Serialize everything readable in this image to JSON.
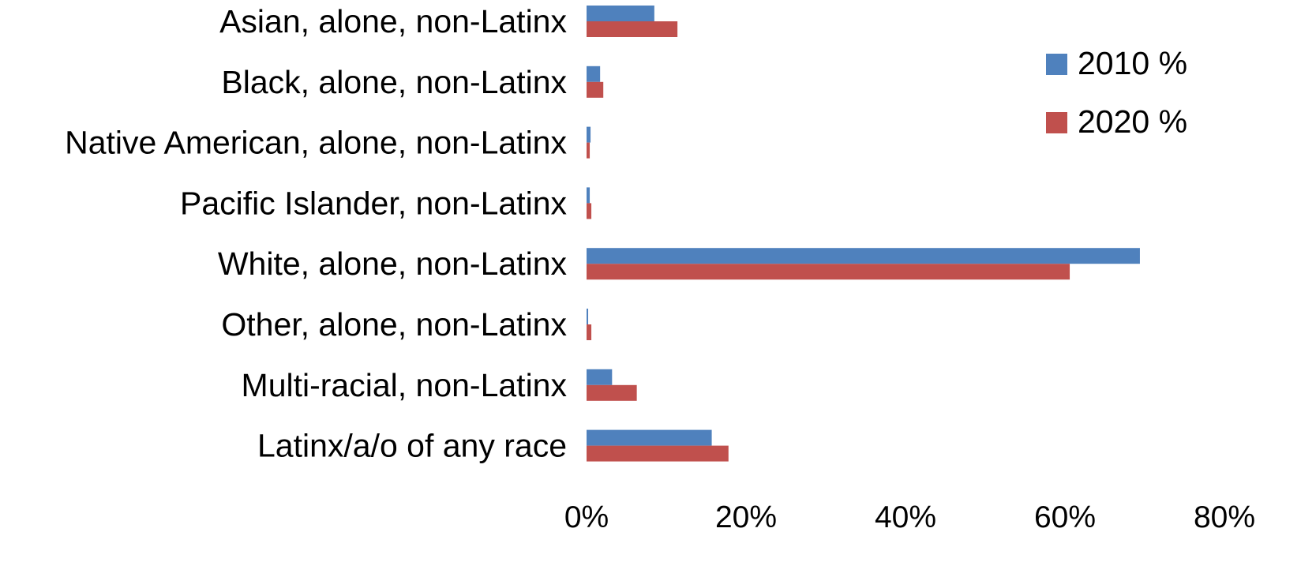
{
  "chart_data": {
    "type": "bar",
    "orientation": "horizontal",
    "categories": [
      "Asian, alone, non-Latinx",
      "Black, alone, non-Latinx",
      "Native American, alone, non-Latinx",
      "Pacific Islander, non-Latinx",
      "White, alone, non-Latinx",
      "Other, alone, non-Latinx",
      "Multi-racial, non-Latinx",
      "Latinx/a/o of any race"
    ],
    "series": [
      {
        "name": "2010 %",
        "color": "#4f81bd",
        "values": [
          8.5,
          1.7,
          0.5,
          0.4,
          69.4,
          0.2,
          3.2,
          15.7
        ]
      },
      {
        "name": "2020 %",
        "color": "#c0504d",
        "values": [
          11.4,
          2.1,
          0.4,
          0.6,
          60.6,
          0.6,
          6.3,
          17.8
        ]
      }
    ],
    "xlim": [
      0,
      80
    ],
    "xticks": [
      "0%",
      "20%",
      "40%",
      "60%",
      "80%"
    ],
    "title": "",
    "xlabel": "",
    "ylabel": "",
    "legend_position": "top-right",
    "grid": false
  }
}
